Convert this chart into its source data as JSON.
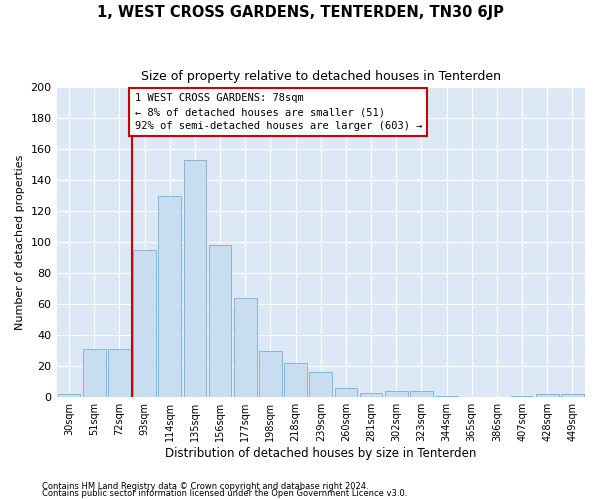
{
  "title": "1, WEST CROSS GARDENS, TENTERDEN, TN30 6JP",
  "subtitle": "Size of property relative to detached houses in Tenterden",
  "xlabel": "Distribution of detached houses by size in Tenterden",
  "ylabel": "Number of detached properties",
  "bar_color": "#c8ddef",
  "bar_edge_color": "#7aaece",
  "background_color": "#dce8f5",
  "grid_color": "#ffffff",
  "categories": [
    "30sqm",
    "51sqm",
    "72sqm",
    "93sqm",
    "114sqm",
    "135sqm",
    "156sqm",
    "177sqm",
    "198sqm",
    "218sqm",
    "239sqm",
    "260sqm",
    "281sqm",
    "302sqm",
    "323sqm",
    "344sqm",
    "365sqm",
    "386sqm",
    "407sqm",
    "428sqm",
    "449sqm"
  ],
  "values": [
    2,
    31,
    31,
    95,
    130,
    153,
    98,
    64,
    30,
    22,
    16,
    6,
    3,
    4,
    4,
    1,
    0,
    0,
    1,
    2,
    2
  ],
  "marker_line_bin": 2,
  "annotation_lines": [
    "1 WEST CROSS GARDENS: 78sqm",
    "← 8% of detached houses are smaller (51)",
    "92% of semi-detached houses are larger (603) →"
  ],
  "ylim": [
    0,
    200
  ],
  "yticks": [
    0,
    20,
    40,
    60,
    80,
    100,
    120,
    140,
    160,
    180,
    200
  ],
  "footer1": "Contains HM Land Registry data © Crown copyright and database right 2024.",
  "footer2": "Contains public sector information licensed under the Open Government Licence v3.0."
}
